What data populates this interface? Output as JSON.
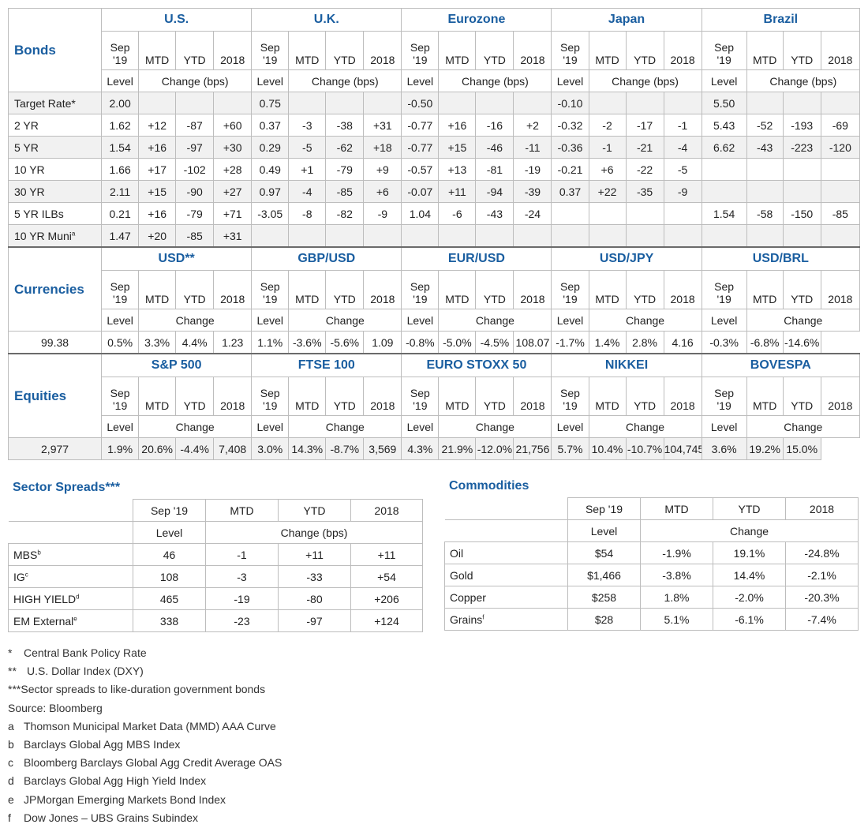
{
  "bonds": {
    "title": "Bonds",
    "regions": [
      "U.S.",
      "U.K.",
      "Eurozone",
      "Japan",
      "Brazil"
    ],
    "subheaders": [
      "Sep '19",
      "MTD",
      "YTD",
      "2018"
    ],
    "level_label": "Level",
    "change_label": "Change (bps)",
    "rows": [
      {
        "label": "Target Rate*",
        "sup": "",
        "cells": [
          "2.00",
          "",
          "",
          "",
          "0.75",
          "",
          "",
          "",
          "-0.50",
          "",
          "",
          "",
          "-0.10",
          "",
          "",
          "",
          "5.50",
          "",
          "",
          ""
        ]
      },
      {
        "label": "2 YR",
        "sup": "",
        "cells": [
          "1.62",
          "+12",
          "-87",
          "+60",
          "0.37",
          "-3",
          "-38",
          "+31",
          "-0.77",
          "+16",
          "-16",
          "+2",
          "-0.32",
          "-2",
          "-17",
          "-1",
          "5.43",
          "-52",
          "-193",
          "-69"
        ]
      },
      {
        "label": "5 YR",
        "sup": "",
        "cells": [
          "1.54",
          "+16",
          "-97",
          "+30",
          "0.29",
          "-5",
          "-62",
          "+18",
          "-0.77",
          "+15",
          "-46",
          "-11",
          "-0.36",
          "-1",
          "-21",
          "-4",
          "6.62",
          "-43",
          "-223",
          "-120"
        ]
      },
      {
        "label": "10 YR",
        "sup": "",
        "cells": [
          "1.66",
          "+17",
          "-102",
          "+28",
          "0.49",
          "+1",
          "-79",
          "+9",
          "-0.57",
          "+13",
          "-81",
          "-19",
          "-0.21",
          "+6",
          "-22",
          "-5",
          "",
          "",
          "",
          ""
        ]
      },
      {
        "label": "30 YR",
        "sup": "",
        "cells": [
          "2.11",
          "+15",
          "-90",
          "+27",
          "0.97",
          "-4",
          "-85",
          "+6",
          "-0.07",
          "+11",
          "-94",
          "-39",
          "0.37",
          "+22",
          "-35",
          "-9",
          "",
          "",
          "",
          ""
        ]
      },
      {
        "label": "5 YR ILBs",
        "sup": "",
        "cells": [
          "0.21",
          "+16",
          "-79",
          "+71",
          "-3.05",
          "-8",
          "-82",
          "-9",
          "1.04",
          "-6",
          "-43",
          "-24",
          "",
          "",
          "",
          "",
          "1.54",
          "-58",
          "-150",
          "-85"
        ]
      },
      {
        "label": "10 YR Muni",
        "sup": "a",
        "cells": [
          "1.47",
          "+20",
          "-85",
          "+31",
          "",
          "",
          "",
          "",
          "",
          "",
          "",
          "",
          "",
          "",
          "",
          "",
          "",
          "",
          "",
          ""
        ]
      }
    ]
  },
  "currencies": {
    "title": "Currencies",
    "regions": [
      "USD**",
      "GBP/USD",
      "EUR/USD",
      "USD/JPY",
      "USD/BRL"
    ],
    "subheaders": [
      "Sep '19",
      "MTD",
      "YTD",
      "2018"
    ],
    "level_label": "Level",
    "change_label": "Change",
    "cells": [
      "99.38",
      "0.5%",
      "3.3%",
      "4.4%",
      "1.23",
      "1.1%",
      "-3.6%",
      "-5.6%",
      "1.09",
      "-0.8%",
      "-5.0%",
      "-4.5%",
      "108.07",
      "-1.7%",
      "1.4%",
      "2.8%",
      "4.16",
      "-0.3%",
      "-6.8%",
      "-14.6%"
    ]
  },
  "equities": {
    "title": "Equities",
    "regions": [
      "S&P 500",
      "FTSE 100",
      "EURO STOXX 50",
      "NIKKEI",
      "BOVESPA"
    ],
    "subheaders": [
      "Sep '19",
      "MTD",
      "YTD",
      "2018"
    ],
    "level_label": "Level",
    "change_label": "Change",
    "cells": [
      "2,977",
      "1.9%",
      "20.6%",
      "-4.4%",
      "7,408",
      "3.0%",
      "14.3%",
      "-8.7%",
      "3,569",
      "4.3%",
      "21.9%",
      "-12.0%",
      "21,756",
      "5.7%",
      "10.4%",
      "-10.7%",
      "104,745",
      "3.6%",
      "19.2%",
      "15.0%"
    ]
  },
  "spreads": {
    "title": "Sector Spreads***",
    "headers": [
      "Sep '19",
      "MTD",
      "YTD",
      "2018"
    ],
    "level_label": "Level",
    "change_label": "Change (bps)",
    "rows": [
      {
        "label": "MBS",
        "sup": "b",
        "cells": [
          "46",
          "-1",
          "+11",
          "+11"
        ]
      },
      {
        "label": "IG",
        "sup": "c",
        "cells": [
          "108",
          "-3",
          "-33",
          "+54"
        ]
      },
      {
        "label": "HIGH YIELD",
        "sup": "d",
        "cells": [
          "465",
          "-19",
          "-80",
          "+206"
        ]
      },
      {
        "label": "EM External",
        "sup": "e",
        "cells": [
          "338",
          "-23",
          "-97",
          "+124"
        ]
      }
    ]
  },
  "commodities": {
    "title": "Commodities",
    "headers": [
      "Sep '19",
      "MTD",
      "YTD",
      "2018"
    ],
    "level_label": "Level",
    "change_label": "Change",
    "rows": [
      {
        "label": "Oil",
        "sup": "",
        "cells": [
          "$54",
          "-1.9%",
          "19.1%",
          "-24.8%"
        ]
      },
      {
        "label": "Gold",
        "sup": "",
        "cells": [
          "$1,466",
          "-3.8%",
          "14.4%",
          "-2.1%"
        ]
      },
      {
        "label": "Copper",
        "sup": "",
        "cells": [
          "$258",
          "1.8%",
          "-2.0%",
          "-20.3%"
        ]
      },
      {
        "label": "Grains",
        "sup": "f",
        "cells": [
          "$28",
          "5.1%",
          "-6.1%",
          "-7.4%"
        ]
      }
    ]
  },
  "footnotes": [
    {
      "key": "*",
      "text": "Central Bank Policy Rate"
    },
    {
      "key": "**",
      "text": "U.S. Dollar Index (DXY)"
    },
    {
      "key": "***",
      "text": "Sector spreads to like-duration government bonds"
    },
    {
      "key": "",
      "text": "Source: Bloomberg"
    },
    {
      "key": "a",
      "text": "Thomson Municipal Market Data (MMD) AAA Curve"
    },
    {
      "key": "b",
      "text": "Barclays Global Agg MBS Index"
    },
    {
      "key": "c",
      "text": "Bloomberg Barclays Global Agg Credit Average OAS"
    },
    {
      "key": "d",
      "text": "Barclays Global Agg High Yield Index"
    },
    {
      "key": "e",
      "text": "JPMorgan Emerging Markets Bond Index"
    },
    {
      "key": "f",
      "text": "Dow Jones – UBS Grains Subindex"
    }
  ]
}
